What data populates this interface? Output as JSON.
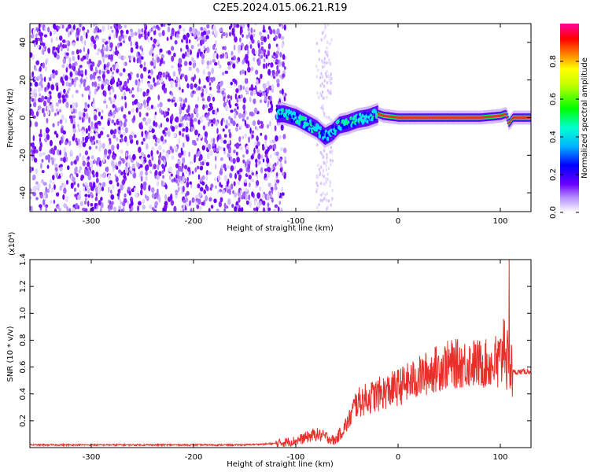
{
  "title": "C2E5.2024.015.06.21.R19",
  "chart_data": [
    {
      "type": "heatmap",
      "xlabel": "Height of straight line (km)",
      "ylabel": "Frequency (Hz)",
      "xlim": [
        -360,
        130
      ],
      "ylim": [
        -50,
        50
      ],
      "x_ticks": [
        -300,
        -200,
        -100,
        0,
        100
      ],
      "y_ticks": [
        -40,
        -20,
        0,
        20,
        40
      ],
      "colorbar": {
        "label": "Normalized spectral amplitude",
        "range": [
          0,
          1
        ],
        "ticks": [
          "0.0",
          "0.2",
          "0.4",
          "0.6",
          "0.8"
        ]
      },
      "signal_track": {
        "x": [
          -112,
          -100,
          -90,
          -80,
          -72,
          -65,
          -58,
          -50,
          -40,
          -30,
          -20,
          -15,
          0,
          40,
          80,
          100,
          105,
          108,
          112,
          130
        ],
        "y": [
          2,
          0,
          -3,
          -6,
          -10,
          -8,
          -4,
          -3,
          -1,
          0,
          2,
          1,
          0,
          0,
          0,
          1,
          2,
          -3,
          0,
          0
        ]
      },
      "noise_region_x": [
        -360,
        -110
      ],
      "colors": [
        "#ffffff",
        "#6a00ff",
        "#0000ff",
        "#00d8ff",
        "#00ff00",
        "#ffff00",
        "#ff0000",
        "#ff00a0"
      ]
    },
    {
      "type": "line",
      "xlabel": "Height of straight line (km)",
      "ylabel": "SNR (10 * v/v)",
      "y_multiplier": "(x10⁴)",
      "xlim": [
        -360,
        130
      ],
      "ylim": [
        0,
        1.4
      ],
      "x_ticks": [
        -300,
        -200,
        -100,
        0,
        100
      ],
      "y_ticks": [
        "0.2",
        "0.4",
        "0.6",
        "0.8",
        "1.0",
        "1.2",
        "1.4"
      ],
      "color": "#e8302a",
      "trend": {
        "x": [
          -360,
          -150,
          -120,
          -100,
          -80,
          -70,
          -62,
          -55,
          -48,
          -42,
          -35,
          -25,
          -10,
          0,
          20,
          35,
          50,
          70,
          90,
          100,
          104,
          108,
          110,
          112,
          130
        ],
        "y": [
          0.02,
          0.02,
          0.03,
          0.05,
          0.1,
          0.08,
          0.05,
          0.12,
          0.2,
          0.32,
          0.35,
          0.38,
          0.42,
          0.45,
          0.52,
          0.58,
          0.62,
          0.63,
          0.62,
          0.6,
          0.85,
          0.5,
          0.62,
          0.56,
          0.57
        ]
      }
    }
  ]
}
